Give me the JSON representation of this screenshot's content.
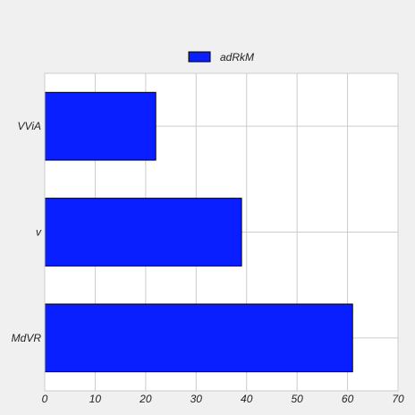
{
  "chart_data": {
    "type": "bar",
    "orientation": "horizontal",
    "categories": [
      "VViA",
      "v",
      "MdVR"
    ],
    "series": [
      {
        "name": "adRkM",
        "values": [
          22,
          39,
          61
        ],
        "color": "#0a1fff"
      }
    ],
    "xlim": [
      0,
      70
    ],
    "xticks": [
      0,
      10,
      20,
      30,
      40,
      50,
      60,
      70
    ],
    "grid": true,
    "legend_position": "top-center",
    "colors": {
      "background": "#f0f0f0",
      "plot_background": "#ffffff",
      "grid": "#cccccc",
      "bar_edge": "#000000"
    }
  }
}
